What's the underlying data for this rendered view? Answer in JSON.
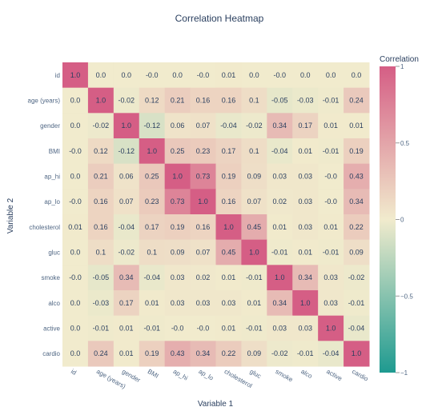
{
  "chart_data": {
    "type": "heatmap",
    "title": "Correlation Heatmap",
    "xlabel": "Variable 1",
    "ylabel": "Variable 2",
    "x": [
      "id",
      "age (years)",
      "gender",
      "BMI",
      "ap_hi",
      "ap_lo",
      "cholesterol",
      "gluc",
      "smoke",
      "alco",
      "active",
      "cardio"
    ],
    "y": [
      "id",
      "age (years)",
      "gender",
      "BMI",
      "ap_hi",
      "ap_lo",
      "cholesterol",
      "gluc",
      "smoke",
      "alco",
      "active",
      "cardio"
    ],
    "z": [
      [
        "1.0",
        "0.0",
        "0.0",
        "-0.0",
        "0.0",
        "-0.0",
        "0.01",
        "0.0",
        "-0.0",
        "0.0",
        "0.0",
        "0.0"
      ],
      [
        "0.0",
        "1.0",
        "-0.02",
        "0.12",
        "0.21",
        "0.16",
        "0.16",
        "0.1",
        "-0.05",
        "-0.03",
        "-0.01",
        "0.24"
      ],
      [
        "0.0",
        "-0.02",
        "1.0",
        "-0.12",
        "0.06",
        "0.07",
        "-0.04",
        "-0.02",
        "0.34",
        "0.17",
        "0.01",
        "0.01"
      ],
      [
        "-0.0",
        "0.12",
        "-0.12",
        "1.0",
        "0.25",
        "0.23",
        "0.17",
        "0.1",
        "-0.04",
        "0.01",
        "-0.01",
        "0.19"
      ],
      [
        "0.0",
        "0.21",
        "0.06",
        "0.25",
        "1.0",
        "0.73",
        "0.19",
        "0.09",
        "0.03",
        "0.03",
        "-0.0",
        "0.43"
      ],
      [
        "-0.0",
        "0.16",
        "0.07",
        "0.23",
        "0.73",
        "1.0",
        "0.16",
        "0.07",
        "0.02",
        "0.03",
        "-0.0",
        "0.34"
      ],
      [
        "0.01",
        "0.16",
        "-0.04",
        "0.17",
        "0.19",
        "0.16",
        "1.0",
        "0.45",
        "0.01",
        "0.03",
        "0.01",
        "0.22"
      ],
      [
        "0.0",
        "0.1",
        "-0.02",
        "0.1",
        "0.09",
        "0.07",
        "0.45",
        "1.0",
        "-0.01",
        "0.01",
        "-0.01",
        "0.09"
      ],
      [
        "-0.0",
        "-0.05",
        "0.34",
        "-0.04",
        "0.03",
        "0.02",
        "0.01",
        "-0.01",
        "1.0",
        "0.34",
        "0.03",
        "-0.02"
      ],
      [
        "0.0",
        "-0.03",
        "0.17",
        "0.01",
        "0.03",
        "0.03",
        "0.03",
        "0.01",
        "0.34",
        "1.0",
        "0.03",
        "-0.01"
      ],
      [
        "0.0",
        "-0.01",
        "0.01",
        "-0.01",
        "-0.0",
        "-0.0",
        "0.01",
        "-0.01",
        "0.03",
        "0.03",
        "1.0",
        "-0.04"
      ],
      [
        "0.0",
        "0.24",
        "0.01",
        "0.19",
        "0.43",
        "0.34",
        "0.22",
        "0.09",
        "-0.02",
        "-0.01",
        "-0.04",
        "1.0"
      ]
    ],
    "zmin": -1,
    "zmax": 1,
    "colorbar": {
      "title": "Correlation",
      "ticks": [
        "1",
        "0.5",
        "0",
        "−0.5",
        "−1"
      ],
      "tick_values": [
        1,
        0.5,
        0,
        -0.5,
        -1
      ]
    },
    "colorscale": [
      "#009B9E",
      "#42B7B9",
      "#A7D3D4",
      "#F1F1F1",
      "#E4C1D9",
      "#D691C1",
      "#C75DAB"
    ],
    "colorscale_used": {
      "low": "#1e9a90",
      "mid": "#f1ebcd",
      "high": "#d55e85"
    }
  }
}
